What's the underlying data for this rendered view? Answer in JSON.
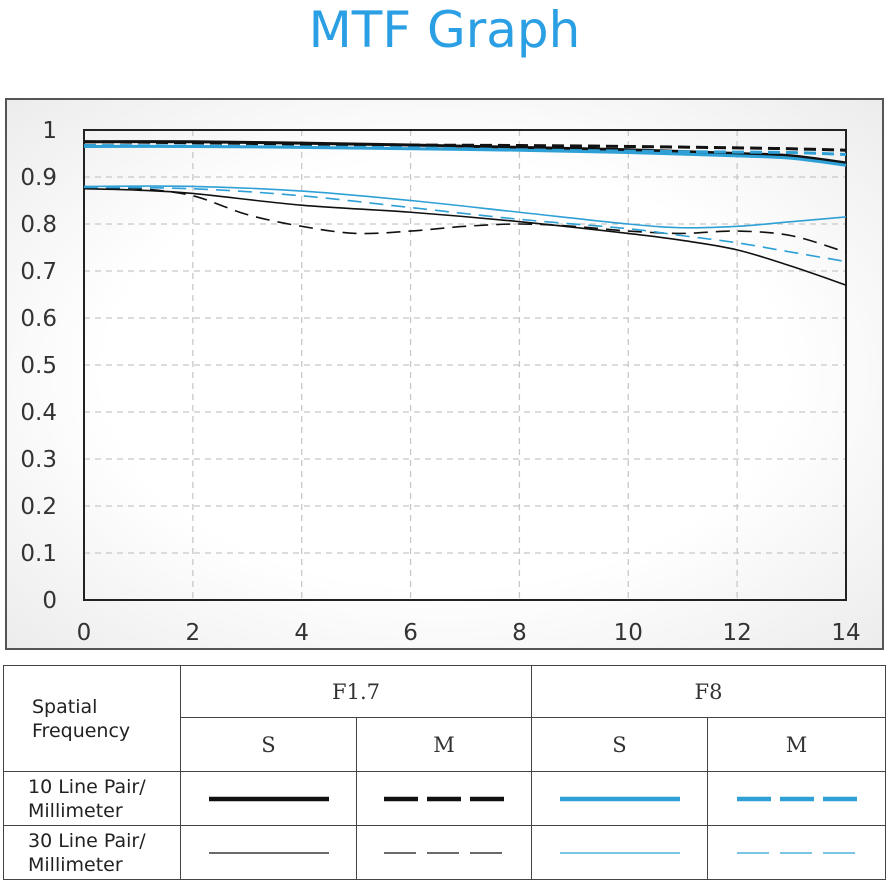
{
  "title": "MTF Graph",
  "colors": {
    "title": "#2a9fe4",
    "f17": "#111111",
    "f8": "#2ea0d6",
    "grid": "#c8c8c8"
  },
  "chart_data": {
    "type": "line",
    "title": "MTF Graph",
    "xlabel": "",
    "ylabel": "",
    "xlim": [
      0,
      14
    ],
    "ylim": [
      0,
      1
    ],
    "x_ticks": [
      "0",
      "2",
      "4",
      "6",
      "8",
      "10",
      "12",
      "14"
    ],
    "y_ticks": [
      "0",
      "0.1",
      "0.2",
      "0.3",
      "0.4",
      "0.5",
      "0.6",
      "0.7",
      "0.8",
      "0.9",
      "1"
    ],
    "grid": true,
    "series": [
      {
        "aperture": "F1.7",
        "direction": "S",
        "frequency": "10 Line Pair/ Millimeter",
        "color": "#111111",
        "style": "solid",
        "weight": "thick",
        "x": [
          0,
          2,
          4,
          6,
          8,
          10,
          12,
          13,
          14
        ],
        "y": [
          0.975,
          0.975,
          0.972,
          0.968,
          0.963,
          0.958,
          0.95,
          0.945,
          0.93
        ]
      },
      {
        "aperture": "F1.7",
        "direction": "M",
        "frequency": "10 Line Pair/ Millimeter",
        "color": "#111111",
        "style": "dashed",
        "weight": "thick",
        "x": [
          0,
          2,
          4,
          6,
          8,
          10,
          12,
          13,
          14
        ],
        "y": [
          0.975,
          0.973,
          0.97,
          0.968,
          0.967,
          0.965,
          0.962,
          0.96,
          0.957
        ]
      },
      {
        "aperture": "F1.7",
        "direction": "S",
        "frequency": "30 Line Pair/ Millimeter",
        "color": "#111111",
        "style": "solid",
        "weight": "thin",
        "x": [
          0,
          1,
          2,
          4,
          6,
          8,
          10,
          11,
          12,
          13,
          14
        ],
        "y": [
          0.875,
          0.872,
          0.865,
          0.84,
          0.825,
          0.805,
          0.78,
          0.765,
          0.745,
          0.71,
          0.67
        ]
      },
      {
        "aperture": "F1.7",
        "direction": "M",
        "frequency": "30 Line Pair/ Millimeter",
        "color": "#111111",
        "style": "dashed",
        "weight": "thin",
        "x": [
          0,
          1,
          2,
          3,
          4,
          5,
          6,
          7,
          8,
          9,
          10,
          11,
          12,
          13,
          14
        ],
        "y": [
          0.875,
          0.875,
          0.86,
          0.82,
          0.795,
          0.78,
          0.785,
          0.795,
          0.8,
          0.795,
          0.785,
          0.78,
          0.785,
          0.775,
          0.74
        ]
      },
      {
        "aperture": "F8",
        "direction": "S",
        "frequency": "10 Line Pair/ Millimeter",
        "color": "#2ea0d6",
        "style": "solid",
        "weight": "thick",
        "x": [
          0,
          2,
          4,
          6,
          8,
          10,
          12,
          13,
          14
        ],
        "y": [
          0.965,
          0.965,
          0.963,
          0.96,
          0.957,
          0.952,
          0.945,
          0.94,
          0.925
        ]
      },
      {
        "aperture": "F8",
        "direction": "M",
        "frequency": "10 Line Pair/ Millimeter",
        "color": "#2ea0d6",
        "style": "dashed",
        "weight": "thick",
        "x": [
          0,
          2,
          4,
          6,
          8,
          10,
          12,
          13,
          14
        ],
        "y": [
          0.967,
          0.966,
          0.964,
          0.962,
          0.958,
          0.955,
          0.953,
          0.952,
          0.948
        ]
      },
      {
        "aperture": "F8",
        "direction": "S",
        "frequency": "30 Line Pair/ Millimeter",
        "color": "#2ea0d6",
        "style": "solid",
        "weight": "thin",
        "x": [
          0,
          2,
          4,
          6,
          8,
          10,
          11,
          12,
          13,
          14
        ],
        "y": [
          0.88,
          0.88,
          0.87,
          0.85,
          0.825,
          0.8,
          0.792,
          0.795,
          0.805,
          0.815
        ]
      },
      {
        "aperture": "F8",
        "direction": "M",
        "frequency": "30 Line Pair/ Millimeter",
        "color": "#2ea0d6",
        "style": "dashed",
        "weight": "thin",
        "x": [
          0,
          2,
          4,
          6,
          8,
          10,
          11,
          12,
          13,
          14
        ],
        "y": [
          0.878,
          0.875,
          0.86,
          0.835,
          0.81,
          0.79,
          0.775,
          0.76,
          0.74,
          0.72
        ]
      }
    ]
  },
  "legend_table": {
    "header_label": "Spatial Frequency",
    "apertures": [
      "F1.7",
      "F8"
    ],
    "directions": [
      "S",
      "M",
      "S",
      "M"
    ],
    "rows": [
      {
        "label": "10 Line Pair/ Millimeter",
        "weight": "thick"
      },
      {
        "label": "30 Line Pair/ Millimeter",
        "weight": "thin"
      }
    ]
  }
}
